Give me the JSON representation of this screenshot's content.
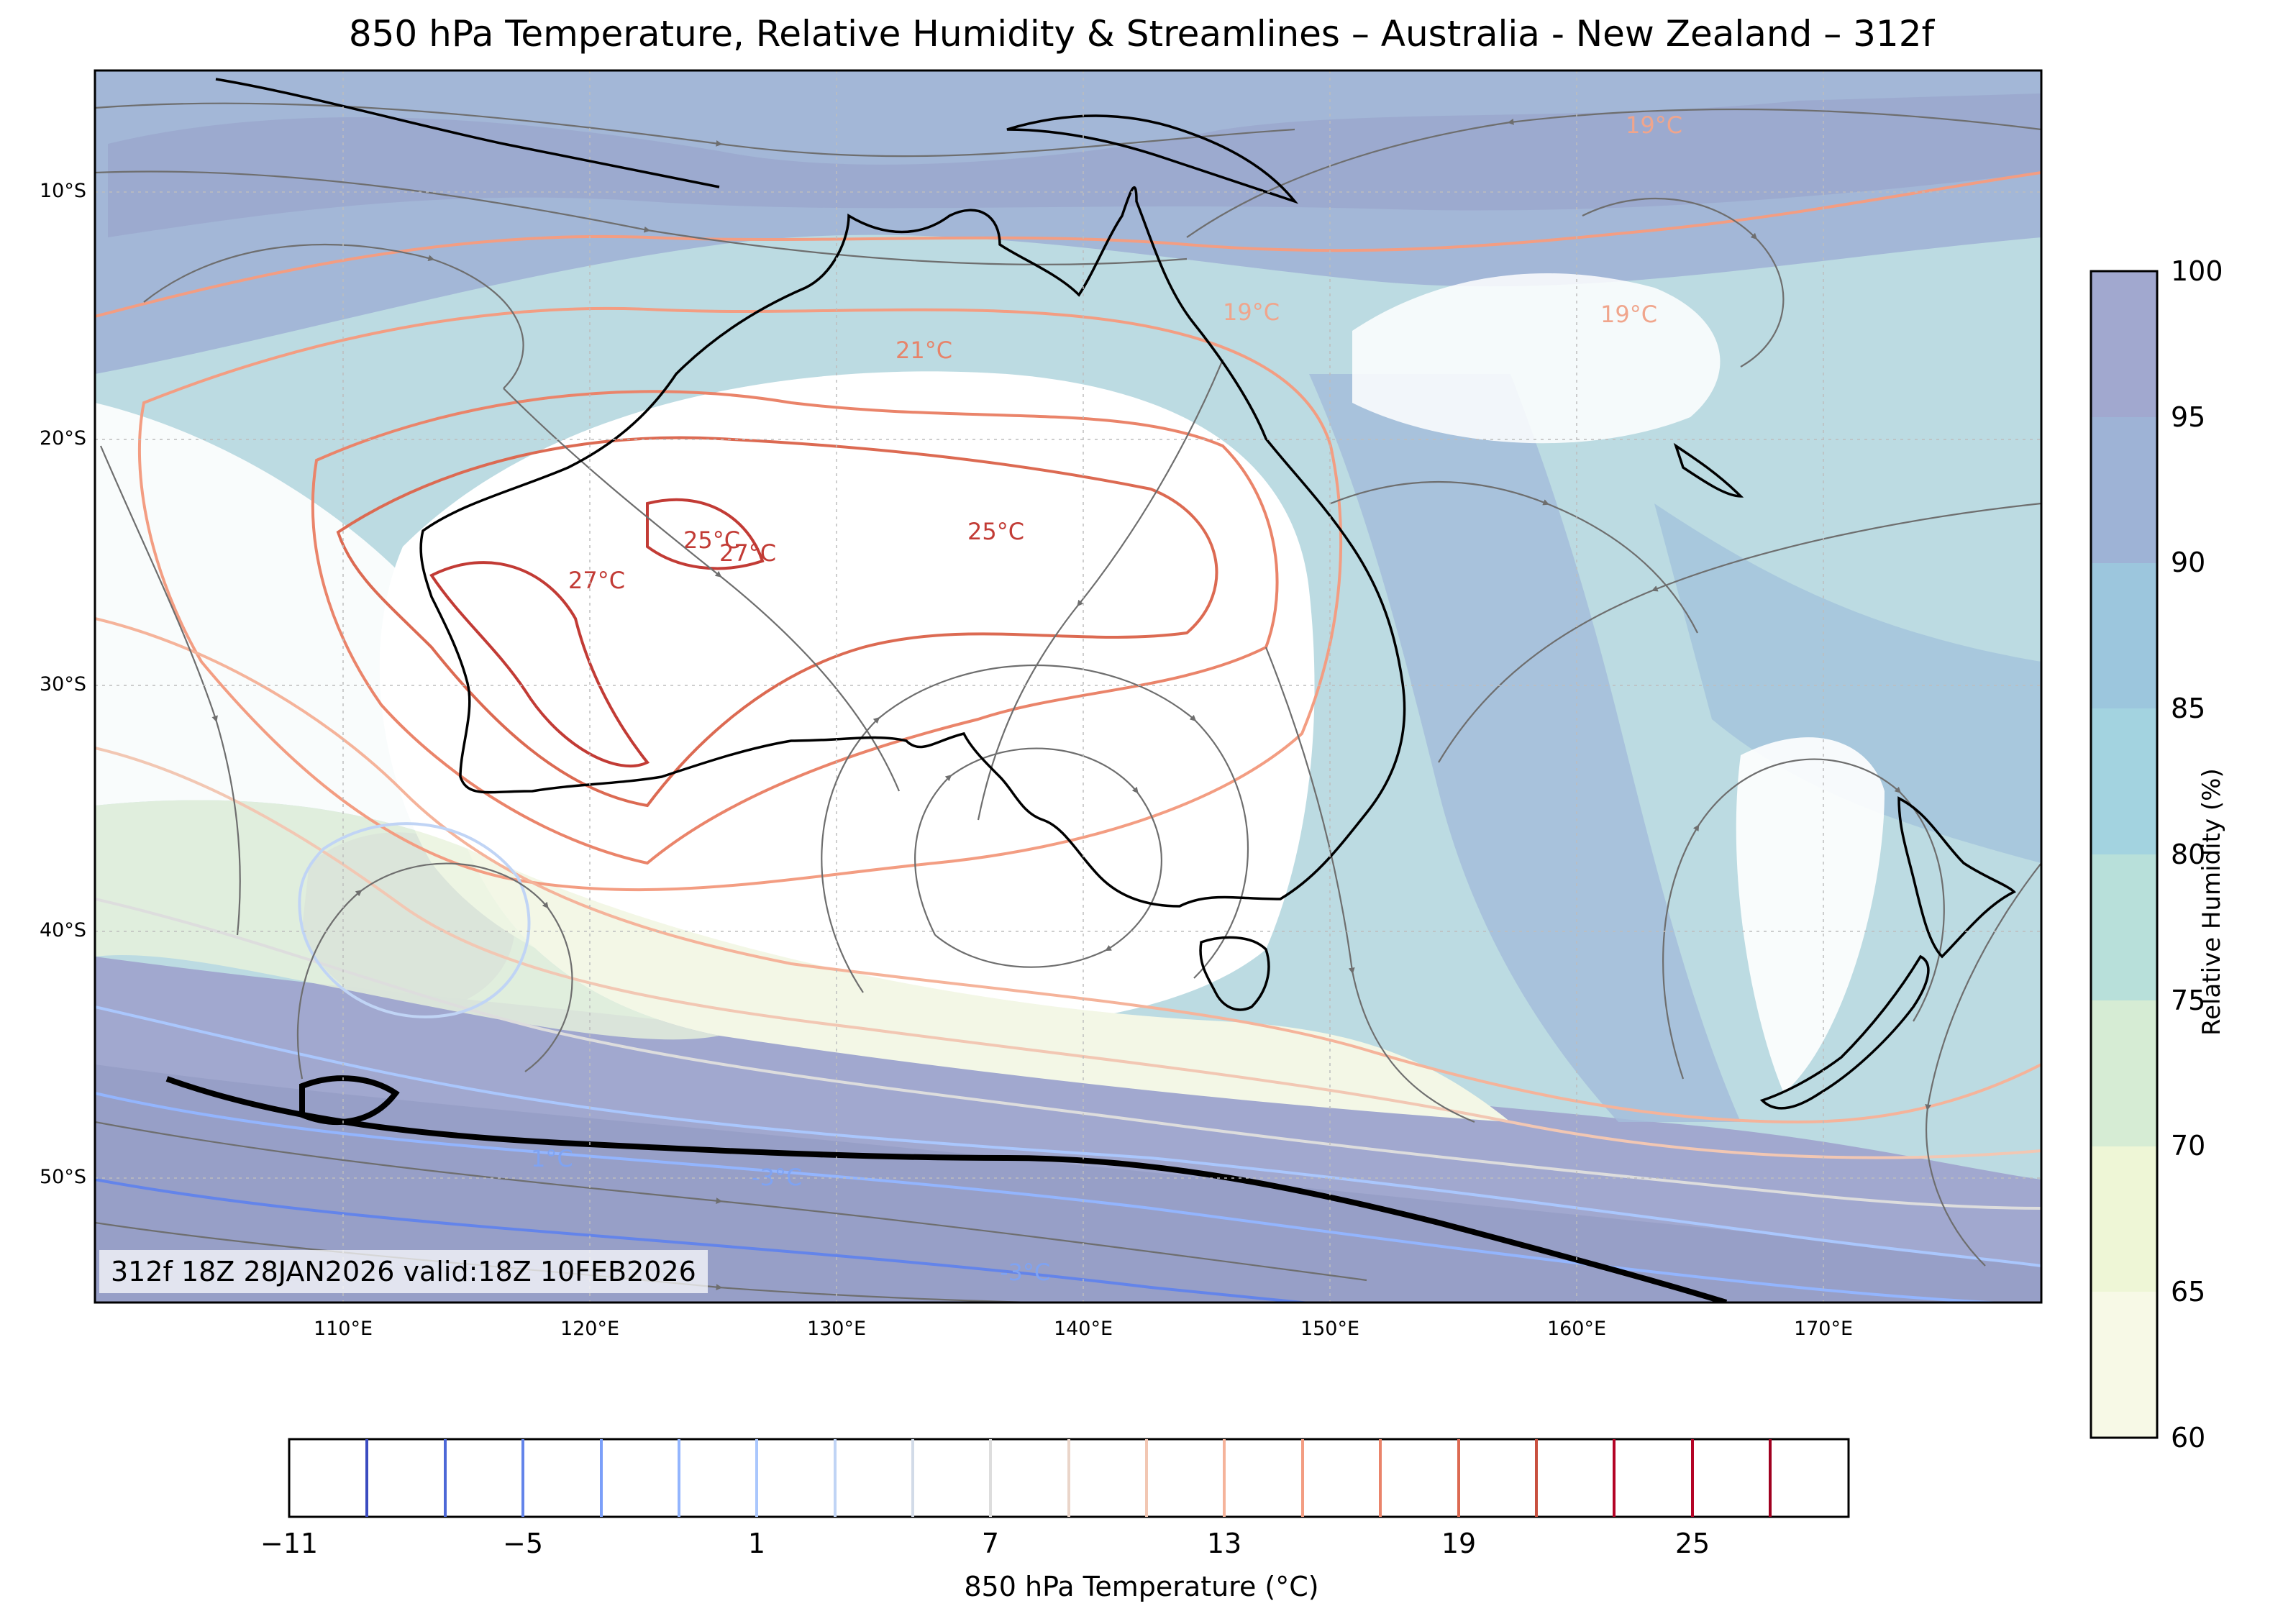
{
  "title": "850 hPa Temperature, Relative Humidity & Streamlines – Australia - New Zealand – 312f",
  "stamp": "312f 18Z 28JAN2026 valid:18Z 10FEB2026",
  "axes": {
    "lat_labels": [
      "10°S",
      "20°S",
      "30°S",
      "40°S",
      "50°S"
    ],
    "lon_labels": [
      "110°E",
      "120°E",
      "130°E",
      "140°E",
      "150°E",
      "160°E",
      "170°E"
    ]
  },
  "contour_labels": [
    {
      "text": "25°C",
      "color": "#c23b35"
    },
    {
      "text": "27°C",
      "color": "#c23b35"
    },
    {
      "text": "27°C",
      "color": "#c23b35"
    },
    {
      "text": "25°C",
      "color": "#c23b35"
    },
    {
      "text": "21°C",
      "color": "#e7846a"
    },
    {
      "text": "19°C",
      "color": "#f0a58c"
    },
    {
      "text": "19°C",
      "color": "#f0a58c"
    },
    {
      "text": "19°C",
      "color": "#f0a58c"
    },
    {
      "text": "1°C",
      "color": "#7fa3f2"
    },
    {
      "text": "-3°C",
      "color": "#7fa3f2"
    },
    {
      "text": "-3°C",
      "color": "#7fa3f2"
    }
  ],
  "rh_colorbar": {
    "title": "Relative Humidity (%)",
    "ticks": [
      "100",
      "95",
      "90",
      "85",
      "80",
      "75",
      "70",
      "65",
      "60"
    ],
    "colors": [
      "#f7f9e6",
      "#eef6d6",
      "#d6ecd4",
      "#b8e0da",
      "#a3d3e0",
      "#9cc6dd",
      "#9eb3d6",
      "#a1a8cf"
    ]
  },
  "temp_colorbar": {
    "title": "850 hPa Temperature (°C)",
    "ticks": [
      "−11",
      "−5",
      "1",
      "7",
      "13",
      "19",
      "25"
    ],
    "line_colors": [
      "#3b4cc0",
      "#4d68d7",
      "#6384ea",
      "#7b9ff9",
      "#93b5fe",
      "#aac7fd",
      "#c0d4f5",
      "#d2dbe8",
      "#dddddd",
      "#ead5c9",
      "#f2c7b3",
      "#f5b39a",
      "#f39d82",
      "#ea846a",
      "#dc6a52",
      "#c8503f",
      "#b40426"
    ]
  },
  "colors": {
    "coastline": "#000000",
    "streamline": "#6e6e6e",
    "ocean_moist": "#9aa6cc",
    "dry": "#ffffff"
  }
}
